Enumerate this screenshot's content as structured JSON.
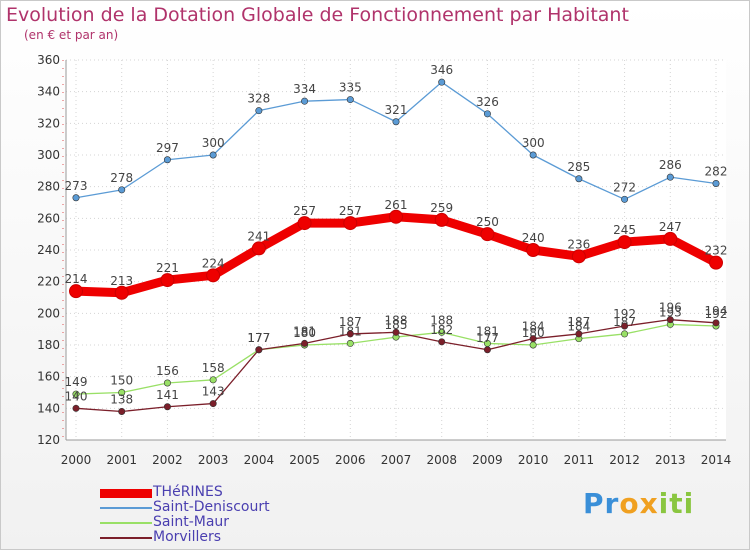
{
  "chart_data": {
    "type": "line",
    "title": "Evolution de la Dotation Globale de Fonctionnement par Habitant",
    "subtitle": "(en € et par an)",
    "categories": [
      "2000",
      "2001",
      "2002",
      "2003",
      "2004",
      "2005",
      "2006",
      "2007",
      "2008",
      "2009",
      "2010",
      "2011",
      "2012",
      "2013",
      "2014"
    ],
    "ylim": [
      120,
      360
    ],
    "yticks": [
      120,
      140,
      160,
      180,
      200,
      220,
      240,
      260,
      280,
      300,
      320,
      340,
      360
    ],
    "grid": true,
    "legend_position": "bottom-left",
    "series": [
      {
        "name": "THéRINES",
        "color": "#ee0000",
        "values": [
          214,
          213,
          221,
          224,
          241,
          257,
          257,
          261,
          259,
          250,
          240,
          236,
          245,
          247,
          232
        ]
      },
      {
        "name": "Saint-Deniscourt",
        "color": "#5b9bd5",
        "values": [
          273,
          278,
          297,
          300,
          328,
          334,
          335,
          321,
          346,
          326,
          300,
          285,
          272,
          286,
          282
        ]
      },
      {
        "name": "Saint-Maur",
        "color": "#99e066",
        "values": [
          149,
          150,
          156,
          158,
          177,
          180,
          181,
          185,
          188,
          181,
          180,
          184,
          187,
          193,
          192
        ]
      },
      {
        "name": "Morvillers",
        "color": "#7b1f2a",
        "values": [
          140,
          138,
          141,
          143,
          177,
          181,
          187,
          188,
          182,
          177,
          184,
          187,
          192,
          196,
          194
        ]
      }
    ]
  },
  "brand": {
    "text": "Proxiti",
    "letters": [
      "P",
      "r",
      "o",
      "x",
      "i",
      "t",
      "i"
    ],
    "colors": [
      "#3a8fd8",
      "#3a8fd8",
      "#f0a020",
      "#f0a020",
      "#8ac640",
      "#8ac640",
      "#8ac640"
    ]
  }
}
